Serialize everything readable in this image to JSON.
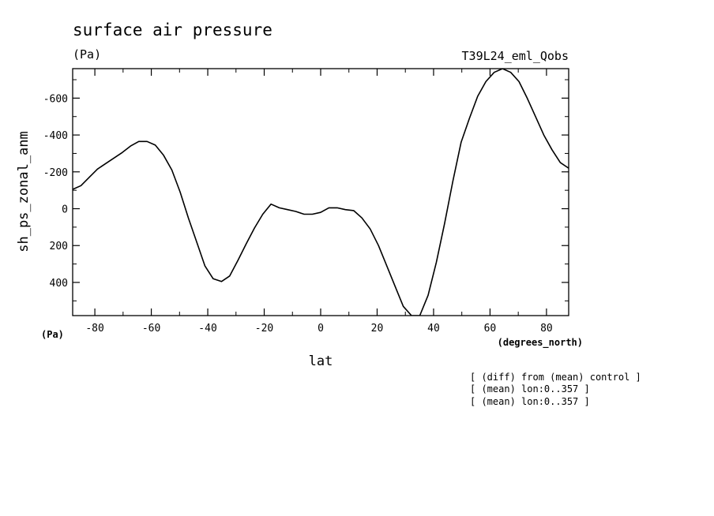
{
  "chart_data": {
    "type": "line",
    "title": "surface air pressure",
    "title_units": "(Pa)",
    "experiment": "T39L24_eml_Qobs",
    "xlabel": "lat",
    "x_units": "(degrees_north)",
    "ylabel": "sh_ps_zonal_anm",
    "y_units": "(Pa)",
    "xlim": [
      -87.86,
      87.86
    ],
    "ylim": [
      580,
      -760
    ],
    "y_inverted": true,
    "grid": false,
    "x_ticks": [
      -80,
      -60,
      -40,
      -20,
      0,
      20,
      40,
      60,
      80
    ],
    "x_tick_labels": [
      "-80",
      "-60",
      "-40",
      "-20",
      "0",
      "20",
      "40",
      "60",
      "80"
    ],
    "y_ticks": [
      -600,
      -400,
      -200,
      0,
      200,
      400
    ],
    "y_tick_labels": [
      "-600",
      "-400",
      "-200",
      "0",
      "200",
      "400"
    ],
    "series": [
      {
        "name": "",
        "color": "#000000",
        "x": [
          -87.86,
          -84.93,
          -82.0,
          -79.07,
          -76.15,
          -73.22,
          -70.29,
          -67.36,
          -64.43,
          -61.51,
          -58.58,
          -55.65,
          -52.72,
          -49.79,
          -46.87,
          -43.94,
          -41.01,
          -38.08,
          -35.15,
          -32.23,
          -29.3,
          -26.37,
          -23.44,
          -20.51,
          -17.59,
          -14.66,
          -11.73,
          -8.8,
          -5.87,
          -2.95,
          -0.02,
          2.91,
          5.84,
          8.77,
          11.7,
          14.62,
          17.55,
          20.48,
          23.41,
          26.34,
          29.26,
          32.19,
          35.12,
          38.05,
          40.98,
          43.9,
          46.83,
          49.76,
          52.69,
          55.62,
          58.54,
          61.47,
          64.4,
          67.33,
          70.26,
          73.18,
          76.11,
          79.04,
          81.97,
          84.9,
          87.83
        ],
        "y": [
          -105,
          -125,
          -170,
          -215,
          -245,
          -275,
          -305,
          -340,
          -365,
          -365,
          -345,
          -290,
          -210,
          -90,
          50,
          180,
          310,
          380,
          395,
          365,
          280,
          190,
          105,
          30,
          -25,
          -5,
          5,
          15,
          30,
          30,
          20,
          -5,
          -5,
          5,
          10,
          50,
          110,
          200,
          310,
          420,
          530,
          580,
          580,
          470,
          290,
          80,
          -150,
          -360,
          -490,
          -610,
          -690,
          -740,
          -760,
          -740,
          -690,
          -600,
          -500,
          -400,
          -320,
          -250,
          -220
        ]
      }
    ],
    "annotations": [
      "[ (diff) from (mean) control ]",
      "[ (mean) lon:0..357 ]",
      "[ (mean) lon:0..357 ]"
    ]
  }
}
